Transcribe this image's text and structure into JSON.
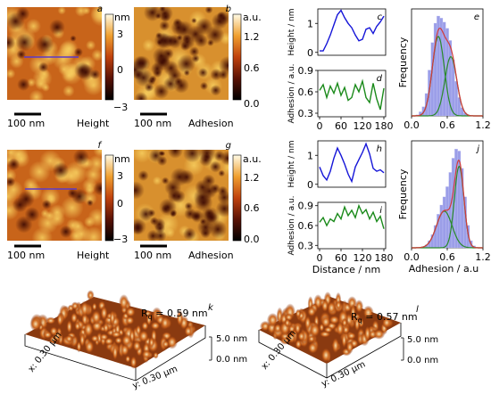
{
  "figure": {
    "top_row": {
      "afm_height": {
        "letter": "a",
        "label": "Height",
        "scale_bar": "100 nm",
        "unit": "nm",
        "ticks": [
          "3",
          "0",
          "−3"
        ]
      },
      "afm_adhesion": {
        "letter": "b",
        "label": "Adhesion",
        "scale_bar": "100 nm",
        "unit": "a.u.",
        "ticks": [
          "1.2",
          "0.6",
          "0.0"
        ]
      },
      "height_profile_letter": "c",
      "adhesion_profile_letter": "d",
      "histogram_letter": "e"
    },
    "bottom_row": {
      "afm_height": {
        "letter": "f",
        "label": "Height",
        "scale_bar": "100 nm",
        "unit": "nm",
        "ticks": [
          "3",
          "0",
          "−3"
        ]
      },
      "afm_adhesion": {
        "letter": "g",
        "label": "Adhesion",
        "scale_bar": "100 nm",
        "unit": "a.u.",
        "ticks": [
          "1.2",
          "0.6",
          "0.0"
        ]
      },
      "height_profile_letter": "h",
      "adhesion_profile_letter": "i",
      "histogram_letter": "j"
    },
    "surface_3d": [
      {
        "letter": "k",
        "rq": "R",
        "rq_sub": "q",
        "rq_value": " = 0.59 nm",
        "z_top": "5.0 nm",
        "z_bottom": "0.0 nm",
        "x_axis": "x: 0.30 μm",
        "y_axis": "y: 0.30 μm"
      },
      {
        "letter": "l",
        "rq": "R",
        "rq_sub": "q",
        "rq_value": " = 0.57 nm",
        "z_top": "5.0 nm",
        "z_bottom": "0.0 nm",
        "x_axis": "x: 0.30 μm",
        "y_axis": "y: 0.30 μm"
      }
    ]
  },
  "chart_data": [
    {
      "type": "line",
      "panel": "c",
      "ylabel": "Height / nm",
      "xlabel": "",
      "xlim": [
        -5,
        185
      ],
      "ylim": [
        -0.1,
        1.5
      ],
      "yticks": [
        "0",
        "1"
      ],
      "xticks": [],
      "color": "#1515d8",
      "x": [
        0,
        10,
        20,
        30,
        40,
        50,
        60,
        70,
        80,
        90,
        100,
        110,
        120,
        130,
        140,
        150,
        160,
        170,
        180
      ],
      "y": [
        0.05,
        0.05,
        0.3,
        0.6,
        0.95,
        1.3,
        1.45,
        1.2,
        1.0,
        0.85,
        0.6,
        0.4,
        0.45,
        0.8,
        0.85,
        0.65,
        0.9,
        1.05,
        1.25
      ]
    },
    {
      "type": "line",
      "panel": "d",
      "ylabel": "Adhesion / a.u.",
      "xlabel": "",
      "xlim": [
        -5,
        185
      ],
      "ylim": [
        0.25,
        0.9
      ],
      "yticks": [
        "0.3",
        "0.6",
        "0.9"
      ],
      "xticks": [
        "0",
        "60",
        "120",
        "180"
      ],
      "color": "#1a8a1a",
      "x": [
        0,
        10,
        20,
        30,
        40,
        50,
        60,
        70,
        80,
        90,
        100,
        110,
        120,
        130,
        140,
        150,
        160,
        170,
        180
      ],
      "y": [
        0.62,
        0.7,
        0.52,
        0.68,
        0.58,
        0.72,
        0.55,
        0.66,
        0.48,
        0.52,
        0.7,
        0.6,
        0.75,
        0.52,
        0.45,
        0.72,
        0.5,
        0.35,
        0.65
      ]
    },
    {
      "type": "bar",
      "panel": "e",
      "ylabel": "Frequency",
      "xlabel": "",
      "xlim": [
        0.0,
        1.2
      ],
      "xticks": [
        "0.0",
        "0.6",
        "1.2"
      ],
      "yticks": [],
      "bar_color": "#9b9ee8",
      "bins": [
        0.1,
        0.15,
        0.2,
        0.25,
        0.3,
        0.35,
        0.4,
        0.45,
        0.5,
        0.55,
        0.6,
        0.65,
        0.7,
        0.75,
        0.8,
        0.85,
        0.9,
        0.95,
        1.0
      ],
      "values": [
        0.01,
        0.04,
        0.09,
        0.22,
        0.45,
        0.72,
        0.91,
        0.98,
        0.96,
        0.92,
        0.86,
        0.74,
        0.55,
        0.34,
        0.18,
        0.08,
        0.03,
        0.01,
        0.0
      ],
      "fit_series": [
        {
          "color": "#2a8a2a",
          "mu": 0.45,
          "sigma": 0.1,
          "amp": 0.78
        },
        {
          "color": "#2a8a2a",
          "mu": 0.66,
          "sigma": 0.1,
          "amp": 0.58
        },
        {
          "color": "#d23a3a",
          "mu": 0.0,
          "sigma": 0.0,
          "amp": 0.0,
          "sum": true
        }
      ]
    },
    {
      "type": "line",
      "panel": "h",
      "ylabel": "Height / nm",
      "xlabel": "",
      "xlim": [
        -5,
        185
      ],
      "ylim": [
        -0.1,
        1.5
      ],
      "yticks": [
        "0",
        "1"
      ],
      "xticks": [],
      "color": "#1515d8",
      "x": [
        0,
        10,
        20,
        30,
        40,
        50,
        60,
        70,
        80,
        90,
        100,
        110,
        120,
        130,
        140,
        150,
        160,
        170,
        180
      ],
      "y": [
        0.6,
        0.3,
        0.15,
        0.45,
        0.9,
        1.25,
        1.0,
        0.7,
        0.35,
        0.1,
        0.6,
        0.85,
        1.1,
        1.4,
        1.05,
        0.55,
        0.45,
        0.5,
        0.4
      ]
    },
    {
      "type": "line",
      "panel": "i",
      "ylabel": "Adhesion / a.u.",
      "xlabel": "Distance / nm",
      "xlim": [
        -5,
        185
      ],
      "ylim": [
        0.25,
        0.95
      ],
      "yticks": [
        "0.3",
        "0.6",
        "0.9"
      ],
      "xticks": [
        "0",
        "60",
        "120",
        "180"
      ],
      "color": "#1a8a1a",
      "x": [
        0,
        10,
        20,
        30,
        40,
        50,
        60,
        70,
        80,
        90,
        100,
        110,
        120,
        130,
        140,
        150,
        160,
        170,
        180
      ],
      "y": [
        0.65,
        0.72,
        0.6,
        0.7,
        0.66,
        0.78,
        0.7,
        0.88,
        0.75,
        0.83,
        0.72,
        0.9,
        0.78,
        0.84,
        0.7,
        0.8,
        0.66,
        0.74,
        0.55
      ]
    },
    {
      "type": "bar",
      "panel": "j",
      "ylabel": "Frequency",
      "xlabel": "Adhesion / a.u",
      "xlim": [
        0.0,
        1.2
      ],
      "xticks": [
        "0.0",
        "0.6",
        "1.2"
      ],
      "yticks": [],
      "bar_color": "#9b9ee8",
      "bins": [
        0.2,
        0.25,
        0.3,
        0.35,
        0.4,
        0.45,
        0.5,
        0.55,
        0.6,
        0.65,
        0.7,
        0.75,
        0.8,
        0.85,
        0.9,
        0.95,
        1.0,
        1.05
      ],
      "values": [
        0.01,
        0.03,
        0.07,
        0.13,
        0.22,
        0.33,
        0.42,
        0.5,
        0.6,
        0.74,
        0.88,
        0.97,
        0.95,
        0.78,
        0.5,
        0.22,
        0.07,
        0.02
      ],
      "fit_series": [
        {
          "color": "#2a8a2a",
          "mu": 0.55,
          "sigma": 0.13,
          "amp": 0.36
        },
        {
          "color": "#2a8a2a",
          "mu": 0.8,
          "sigma": 0.08,
          "amp": 0.8
        },
        {
          "color": "#d23a3a",
          "mu": 0.0,
          "sigma": 0.0,
          "amp": 0.0,
          "sum": true
        }
      ]
    }
  ]
}
